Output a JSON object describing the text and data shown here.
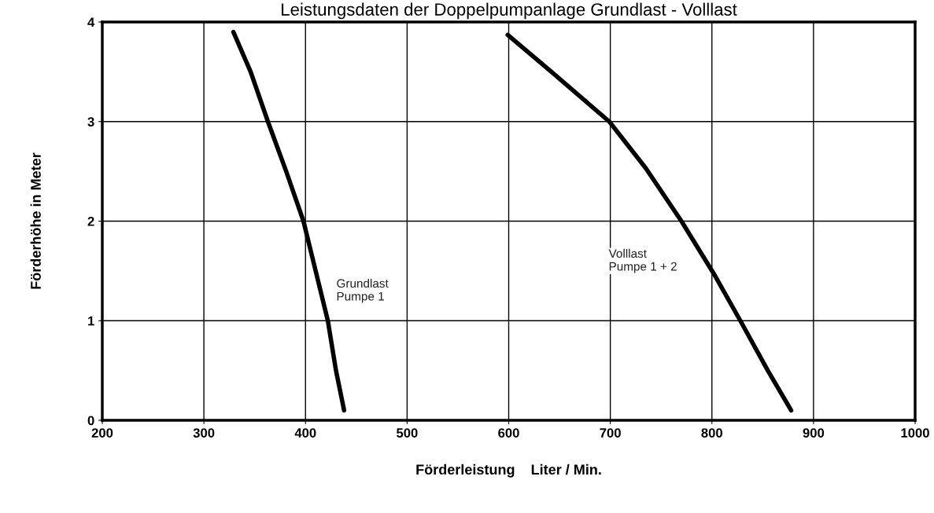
{
  "chart_data": {
    "type": "line",
    "title": "Leistungsdaten der Doppelpumpanlage Grundlast - Volllast",
    "xlabel": "Förderleistung    Liter / Min.",
    "ylabel": "Förderhöhe in Meter",
    "series": [
      {
        "color": "#000000",
        "x": [
          329,
          346,
          363,
          381,
          398,
          410,
          422,
          430,
          438
        ],
        "values": [
          3.9,
          3.5,
          3.0,
          2.5,
          2.0,
          1.5,
          1.0,
          0.5,
          0.1
        ]
      },
      {
        "color": "#000000",
        "x": [
          599,
          642,
          699,
          735,
          770,
          802,
          828,
          855,
          878
        ],
        "values": [
          3.87,
          3.5,
          3.0,
          2.53,
          2.0,
          1.47,
          1.0,
          0.5,
          0.1
        ]
      }
    ],
    "annotations": [
      "Grundlast\nPumpe 1",
      "Volllast\nPumpe 1 + 2"
    ],
    "xlim": [
      200,
      1000
    ],
    "xticks": [
      200,
      300,
      400,
      500,
      600,
      700,
      800,
      900,
      1000
    ],
    "ylim": [
      0,
      4
    ],
    "yticks": [
      0,
      1,
      2,
      3,
      4
    ],
    "grid": true,
    "marker": "none",
    "line_style": "solid"
  }
}
